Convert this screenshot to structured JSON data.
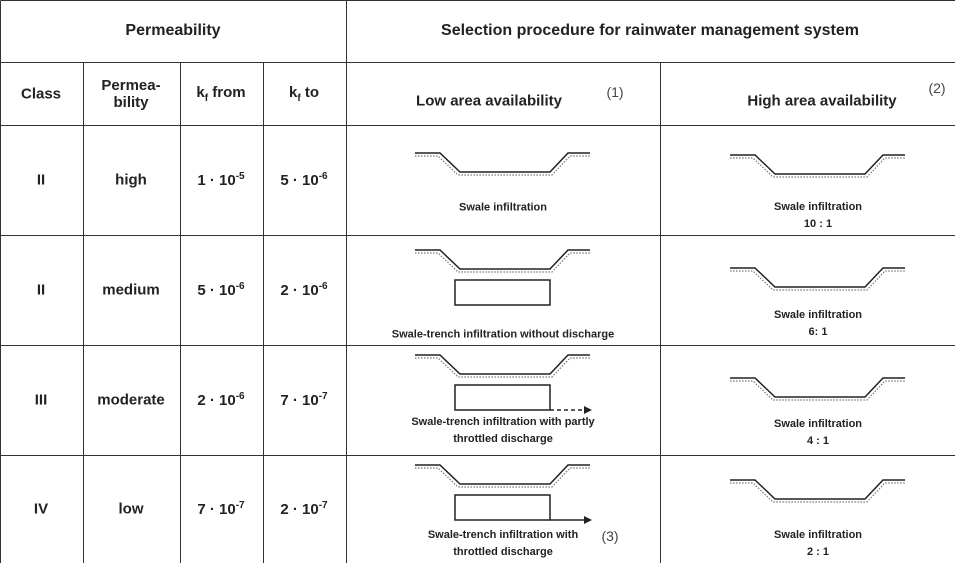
{
  "header": {
    "permeability": "Permeability",
    "selection": "Selection procedure for rainwater management system",
    "class": "Class",
    "permeability_col": [
      "Permea-",
      "bility"
    ],
    "kf_from": {
      "main": "k",
      "sub": "f",
      "rest": " from"
    },
    "kf_to": {
      "main": "k",
      "sub": "f",
      "rest": " to"
    },
    "low": "Low area availability",
    "low_note": "(1)",
    "high": "High area availability",
    "high_note": "(2)"
  },
  "rows": [
    {
      "class": "II",
      "permeability": "high",
      "kf_from": {
        "base": "1 · 10",
        "exp": "-5"
      },
      "kf_to": {
        "base": "5 · 10",
        "exp": "-6"
      },
      "low": "Swale infiltration",
      "high": "Swale infiltration",
      "ratio": "10 : 1"
    },
    {
      "class": "II",
      "permeability": "medium",
      "kf_from": {
        "base": "5 · 10",
        "exp": "-6"
      },
      "kf_to": {
        "base": "2 · 10",
        "exp": "-6"
      },
      "low": "Swale-trench infiltration without discharge",
      "high": "Swale infiltration",
      "ratio": "6: 1"
    },
    {
      "class": "III",
      "permeability": "moderate",
      "kf_from": {
        "base": "2 · 10",
        "exp": "-6"
      },
      "kf_to": {
        "base": "7 · 10",
        "exp": "-7"
      },
      "low": "Swale-trench infiltration with partly throttled discharge",
      "high": "Swale infiltration",
      "ratio": "4 : 1"
    },
    {
      "class": "IV",
      "permeability": "low",
      "kf_from": {
        "base": "7 · 10",
        "exp": "-7"
      },
      "kf_to": {
        "base": "2 · 10",
        "exp": "-7"
      },
      "low": "Swale-trench infiltration with throttled discharge",
      "low_note": "(3)",
      "high": "Swale infiltration",
      "ratio": "2 : 1"
    }
  ]
}
